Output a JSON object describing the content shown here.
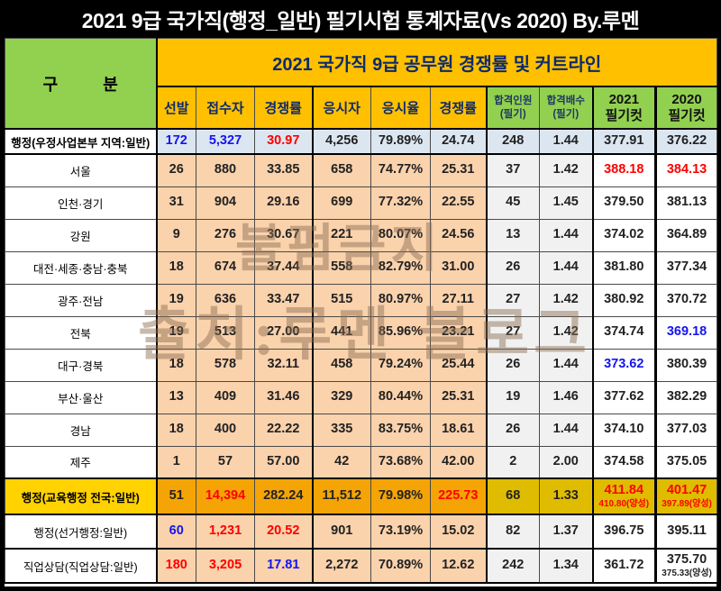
{
  "window_title": "2021 9급 국가직(행정_일반) 필기시험 통계자료(Vs 2020) By.루멘",
  "header": {
    "gubun": "구          분",
    "band_title": "2021 국가직 9급 공무원 경쟁률 및 커트라인",
    "columns": [
      {
        "l1": "선발"
      },
      {
        "l1": "접수자"
      },
      {
        "l1": "경쟁률"
      },
      {
        "l1": "응시자"
      },
      {
        "l1": "응시율"
      },
      {
        "l1": "경쟁률"
      },
      {
        "l1": "합격인원",
        "l2": "(필기)"
      },
      {
        "l1": "합격배수",
        "l2": "(필기)"
      },
      {
        "l1": "2021",
        "l2": "필기컷"
      },
      {
        "l1": "2020",
        "l2": "필기컷"
      }
    ]
  },
  "watermark": {
    "line1": "불펌금지",
    "line2": "출처:루멘 블로그"
  },
  "colors": {
    "green_header": "#92D050",
    "orange_header": "#FFC000",
    "navy_header_text": "#0d2a6b",
    "postal_row_bg": "#DCE6F1",
    "peach_cell_bg": "#FAD2AC",
    "gray_cell_bg": "#F1F1F1",
    "gold_label_bg": "#FFD200",
    "gold_orange_cell_bg": "#F4A405",
    "gold_dark_yellow_cell_bg": "#DFBC00",
    "blue_text": "#1414F0",
    "red_text": "#FE0000",
    "title_bar_bg": "#000000",
    "title_bar_text": "#FFFFFF"
  },
  "table": {
    "col_keys": [
      "selected",
      "applicants",
      "comp-ratio",
      "takers",
      "take-rate",
      "real-ratio",
      "pass-count",
      "pass-multiple",
      "cut-2021",
      "cut-2020"
    ],
    "rows": [
      {
        "label": "행정(우정사업본부 지역:일반)",
        "type": "postal",
        "cells": [
          {
            "t": "172",
            "c": "b"
          },
          {
            "t": "5,327",
            "c": "b"
          },
          {
            "t": "30.97",
            "c": "r"
          },
          {
            "t": "4,256"
          },
          {
            "t": "79.89%"
          },
          {
            "t": "24.74"
          },
          {
            "t": "248"
          },
          {
            "t": "1.44"
          },
          {
            "t": "377.91"
          },
          {
            "t": "376.22"
          }
        ]
      },
      {
        "label": "서울",
        "type": "region",
        "cells": [
          {
            "t": "26"
          },
          {
            "t": "880"
          },
          {
            "t": "33.85"
          },
          {
            "t": "658"
          },
          {
            "t": "74.77%"
          },
          {
            "t": "25.31"
          },
          {
            "t": "37"
          },
          {
            "t": "1.42"
          },
          {
            "t": "388.18",
            "c": "r"
          },
          {
            "t": "384.13",
            "c": "r"
          }
        ]
      },
      {
        "label": "인천·경기",
        "type": "region",
        "cells": [
          {
            "t": "31"
          },
          {
            "t": "904"
          },
          {
            "t": "29.16"
          },
          {
            "t": "699"
          },
          {
            "t": "77.32%"
          },
          {
            "t": "22.55"
          },
          {
            "t": "45"
          },
          {
            "t": "1.45"
          },
          {
            "t": "379.50"
          },
          {
            "t": "381.13"
          }
        ]
      },
      {
        "label": "강원",
        "type": "region",
        "cells": [
          {
            "t": "9"
          },
          {
            "t": "276"
          },
          {
            "t": "30.67"
          },
          {
            "t": "221"
          },
          {
            "t": "80.07%"
          },
          {
            "t": "24.56"
          },
          {
            "t": "13"
          },
          {
            "t": "1.44"
          },
          {
            "t": "374.02"
          },
          {
            "t": "364.89"
          }
        ]
      },
      {
        "label": "대전·세종·충남·충북",
        "type": "region",
        "cells": [
          {
            "t": "18"
          },
          {
            "t": "674"
          },
          {
            "t": "37.44"
          },
          {
            "t": "558"
          },
          {
            "t": "82.79%"
          },
          {
            "t": "31.00"
          },
          {
            "t": "26"
          },
          {
            "t": "1.44"
          },
          {
            "t": "381.80"
          },
          {
            "t": "377.34"
          }
        ]
      },
      {
        "label": "광주·전남",
        "type": "region",
        "cells": [
          {
            "t": "19"
          },
          {
            "t": "636"
          },
          {
            "t": "33.47"
          },
          {
            "t": "515"
          },
          {
            "t": "80.97%"
          },
          {
            "t": "27.11"
          },
          {
            "t": "27"
          },
          {
            "t": "1.42"
          },
          {
            "t": "380.92"
          },
          {
            "t": "370.72"
          }
        ]
      },
      {
        "label": "전북",
        "type": "region",
        "cells": [
          {
            "t": "19"
          },
          {
            "t": "513"
          },
          {
            "t": "27.00"
          },
          {
            "t": "441"
          },
          {
            "t": "85.96%"
          },
          {
            "t": "23.21"
          },
          {
            "t": "27"
          },
          {
            "t": "1.42"
          },
          {
            "t": "374.74"
          },
          {
            "t": "369.18",
            "c": "b"
          }
        ]
      },
      {
        "label": "대구·경북",
        "type": "region",
        "cells": [
          {
            "t": "18"
          },
          {
            "t": "578"
          },
          {
            "t": "32.11"
          },
          {
            "t": "458"
          },
          {
            "t": "79.24%"
          },
          {
            "t": "25.44"
          },
          {
            "t": "26"
          },
          {
            "t": "1.44"
          },
          {
            "t": "373.62",
            "c": "b"
          },
          {
            "t": "380.39"
          }
        ]
      },
      {
        "label": "부산·울산",
        "type": "region",
        "cells": [
          {
            "t": "13"
          },
          {
            "t": "409"
          },
          {
            "t": "31.46"
          },
          {
            "t": "329"
          },
          {
            "t": "80.44%"
          },
          {
            "t": "25.31"
          },
          {
            "t": "19"
          },
          {
            "t": "1.46"
          },
          {
            "t": "377.62"
          },
          {
            "t": "382.29"
          }
        ]
      },
      {
        "label": "경남",
        "type": "region",
        "cells": [
          {
            "t": "18"
          },
          {
            "t": "400"
          },
          {
            "t": "22.22"
          },
          {
            "t": "335"
          },
          {
            "t": "83.75%"
          },
          {
            "t": "18.61"
          },
          {
            "t": "26"
          },
          {
            "t": "1.44"
          },
          {
            "t": "374.10"
          },
          {
            "t": "377.03"
          }
        ]
      },
      {
        "label": "제주",
        "type": "region",
        "cells": [
          {
            "t": "1"
          },
          {
            "t": "57"
          },
          {
            "t": "57.00"
          },
          {
            "t": "42"
          },
          {
            "t": "73.68%"
          },
          {
            "t": "42.00"
          },
          {
            "t": "2"
          },
          {
            "t": "2.00"
          },
          {
            "t": "374.58"
          },
          {
            "t": "375.05"
          }
        ]
      },
      {
        "label": "행정(교육행정 전국:일반)",
        "type": "gold",
        "cells": [
          {
            "t": "51"
          },
          {
            "t": "14,394",
            "c": "r"
          },
          {
            "t": "282.24"
          },
          {
            "t": "11,512"
          },
          {
            "t": "79.98%"
          },
          {
            "t": "225.73",
            "c": "r"
          },
          {
            "t": "68"
          },
          {
            "t": "1.33"
          },
          {
            "t": "411.84",
            "sub": "410.80(양성)",
            "c": "r"
          },
          {
            "t": "401.47",
            "sub": "397.89(양성)",
            "c": "r"
          }
        ]
      },
      {
        "label": "행정(선거행정:일반)",
        "type": "special",
        "cells": [
          {
            "t": "60",
            "c": "b"
          },
          {
            "t": "1,231",
            "c": "r"
          },
          {
            "t": "20.52",
            "c": "r"
          },
          {
            "t": "901"
          },
          {
            "t": "73.19%"
          },
          {
            "t": "15.02"
          },
          {
            "t": "82"
          },
          {
            "t": "1.37"
          },
          {
            "t": "396.75"
          },
          {
            "t": "395.11"
          }
        ]
      },
      {
        "label": "직업상담(직업상담:일반)",
        "type": "special",
        "cells": [
          {
            "t": "180",
            "c": "r"
          },
          {
            "t": "3,205",
            "c": "r"
          },
          {
            "t": "17.81",
            "c": "b"
          },
          {
            "t": "2,272"
          },
          {
            "t": "70.89%"
          },
          {
            "t": "12.62"
          },
          {
            "t": "242"
          },
          {
            "t": "1.34"
          },
          {
            "t": "361.72"
          },
          {
            "t": "375.70",
            "sub": "375.33(양성)"
          }
        ]
      }
    ]
  }
}
